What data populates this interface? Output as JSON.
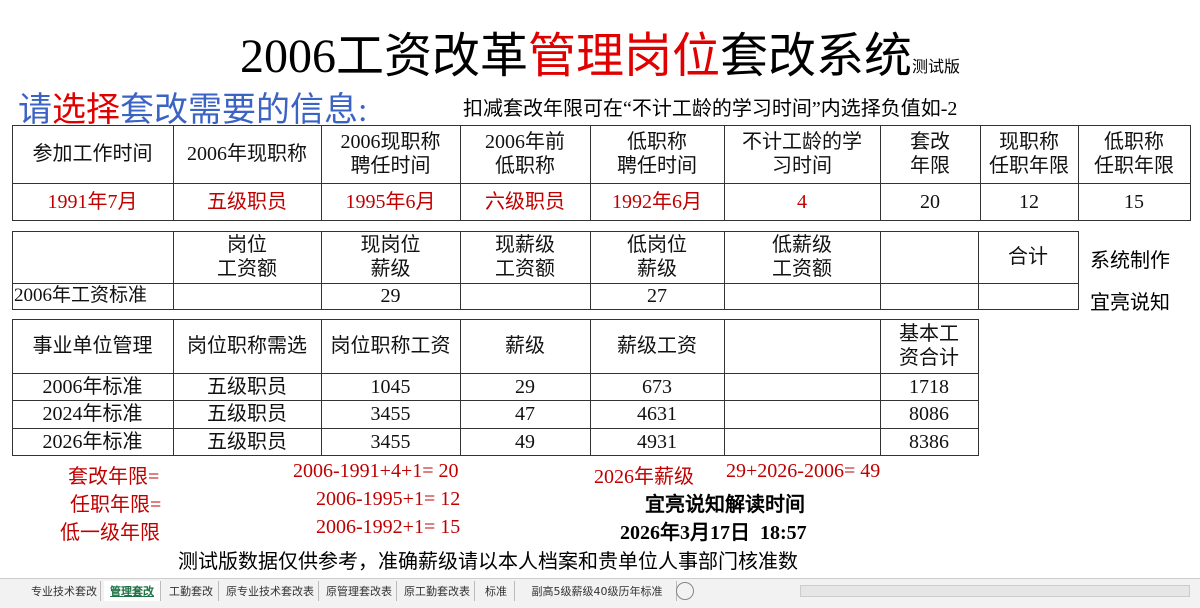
{
  "header": {
    "title_parts": [
      "2006工资改革",
      "管理岗位",
      "套改系统"
    ],
    "edition": "测试版"
  },
  "prompt": {
    "parts": [
      "请",
      "选择",
      "套改需要的信息:"
    ],
    "note": "扣减套改年限可在“不计工龄的学习时间”内选择负值如-2"
  },
  "table1": {
    "header": [
      "参加工作时间",
      "2006年现职称",
      "2006现职称\n聘任时间",
      "2006年前\n低职称",
      "低职称\n聘任时间",
      "不计工龄的学\n习时间",
      "套改\n年限",
      "现职称\n任职年限",
      "低职称\n任职年限"
    ],
    "rows": [
      [
        "1991年7月",
        "五级职员",
        "1995年6月",
        "六级职员",
        "1992年6月",
        4,
        20,
        12,
        15
      ]
    ]
  },
  "table2": {
    "header": [
      null,
      "岗位\n工资额",
      "现岗位\n薪级",
      "现薪级\n工资额",
      "低岗位\n薪级",
      "低薪级\n工资额",
      null,
      "合计"
    ],
    "rows": [
      [
        "2006年工资标准",
        null,
        29,
        null,
        27,
        null,
        null,
        null
      ]
    ],
    "side": [
      "系统制作",
      "宜亮说知"
    ]
  },
  "table3": {
    "header": [
      "事业单位管理",
      "岗位职称需选",
      "岗位职称工资",
      "薪级",
      "薪级工资",
      null,
      "基本工\n资合计"
    ],
    "rows": [
      [
        "2006年标准",
        "五级职员",
        1045,
        29,
        673,
        null,
        1718
      ],
      [
        "2024年标准",
        "五级职员",
        3455,
        47,
        4631,
        null,
        8086
      ],
      [
        "2026年标准",
        "五级职员",
        3455,
        49,
        4931,
        null,
        8386
      ]
    ]
  },
  "notes": {
    "rows": [
      [
        "套改年限=",
        "2006-1991+4+1= 20",
        "2026年薪级",
        "29+2026-2006= 49"
      ],
      [
        "任职年限=",
        "2006-1995+1= 12",
        "宜亮说知解读时间"
      ],
      [
        "低一级年限",
        "2006-1992+1= 15",
        "2026年3月17日  18:57"
      ]
    ],
    "disclaimer": "测试版数据仅供参考，准确薪级请以本人档案和贵单位人事部门核准数"
  },
  "tabs": [
    "专业技术套改",
    "管理套改",
    "工勤套改",
    "原专业技术套改表",
    "原管理套改表",
    "原工勤套改表",
    "标准",
    "副高5级薪级40级历年标准"
  ]
}
